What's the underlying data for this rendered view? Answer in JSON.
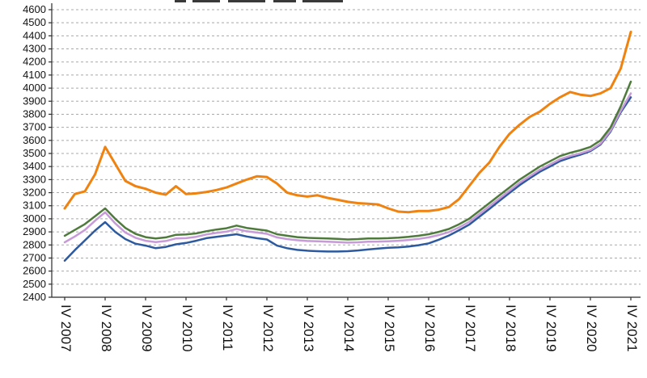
{
  "chart_data": {
    "type": "line",
    "note": "title cut off at top of screenshot",
    "legend": "none",
    "grid": "horizontal-dashed",
    "ylim": [
      2400,
      4600
    ],
    "ytick_step": 100,
    "y_ticks": [
      2400,
      2500,
      2600,
      2700,
      2800,
      2900,
      3000,
      3100,
      3200,
      3300,
      3400,
      3500,
      3600,
      3700,
      3800,
      3900,
      4000,
      4100,
      4200,
      4300,
      4400,
      4500,
      4600
    ],
    "x_labels": [
      "IV 2007",
      "IV 2008",
      "IV 2009",
      "IV 2010",
      "IV 2011",
      "IV 2012",
      "IV 2013",
      "IV 2014",
      "IV 2015",
      "IV 2016",
      "IV 2017",
      "IV 2018",
      "IV 2019",
      "IV 2020",
      "IV 2021"
    ],
    "points_per_label": 4,
    "series": [
      {
        "name": "orange",
        "color": "#F0820F",
        "width": 3,
        "values": [
          3080,
          3190,
          3210,
          3340,
          3550,
          3420,
          3290,
          3250,
          3230,
          3200,
          3185,
          3250,
          3190,
          3195,
          3205,
          3220,
          3240,
          3270,
          3300,
          3325,
          3320,
          3270,
          3200,
          3180,
          3170,
          3180,
          3160,
          3145,
          3130,
          3120,
          3115,
          3110,
          3080,
          3055,
          3050,
          3060,
          3060,
          3070,
          3090,
          3150,
          3250,
          3350,
          3430,
          3550,
          3650,
          3720,
          3780,
          3820,
          3880,
          3930,
          3970,
          3950,
          3940,
          3960,
          4000,
          4150,
          4430
        ]
      },
      {
        "name": "green",
        "color": "#4E7B3C",
        "width": 2.5,
        "values": [
          2870,
          2915,
          2960,
          3020,
          3080,
          3000,
          2930,
          2885,
          2860,
          2850,
          2858,
          2878,
          2880,
          2888,
          2905,
          2918,
          2928,
          2948,
          2930,
          2920,
          2910,
          2882,
          2870,
          2860,
          2855,
          2852,
          2850,
          2846,
          2842,
          2845,
          2850,
          2850,
          2852,
          2856,
          2862,
          2870,
          2882,
          2900,
          2922,
          2958,
          3000,
          3060,
          3120,
          3180,
          3240,
          3300,
          3350,
          3400,
          3440,
          3480,
          3505,
          3525,
          3550,
          3600,
          3700,
          3860,
          4050
        ]
      },
      {
        "name": "violet",
        "color": "#C79BD8",
        "width": 2.5,
        "values": [
          2820,
          2865,
          2915,
          2985,
          3050,
          2965,
          2895,
          2855,
          2832,
          2822,
          2830,
          2850,
          2852,
          2862,
          2880,
          2892,
          2902,
          2922,
          2905,
          2895,
          2885,
          2858,
          2845,
          2836,
          2830,
          2828,
          2825,
          2822,
          2818,
          2820,
          2825,
          2826,
          2828,
          2832,
          2838,
          2846,
          2858,
          2876,
          2898,
          2934,
          2976,
          3036,
          3096,
          3156,
          3216,
          3276,
          3326,
          3376,
          3416,
          3456,
          3481,
          3501,
          3526,
          3576,
          3676,
          3826,
          3960
        ]
      },
      {
        "name": "blue",
        "color": "#2D5A9E",
        "width": 2.5,
        "values": [
          2680,
          2760,
          2835,
          2910,
          2975,
          2900,
          2845,
          2810,
          2795,
          2775,
          2785,
          2805,
          2815,
          2832,
          2852,
          2862,
          2872,
          2882,
          2865,
          2852,
          2842,
          2795,
          2775,
          2762,
          2756,
          2752,
          2750,
          2750,
          2752,
          2758,
          2765,
          2772,
          2778,
          2782,
          2788,
          2798,
          2812,
          2840,
          2872,
          2912,
          2955,
          3015,
          3075,
          3138,
          3198,
          3258,
          3310,
          3360,
          3400,
          3442,
          3468,
          3490,
          3518,
          3568,
          3668,
          3815,
          3930
        ]
      }
    ]
  }
}
